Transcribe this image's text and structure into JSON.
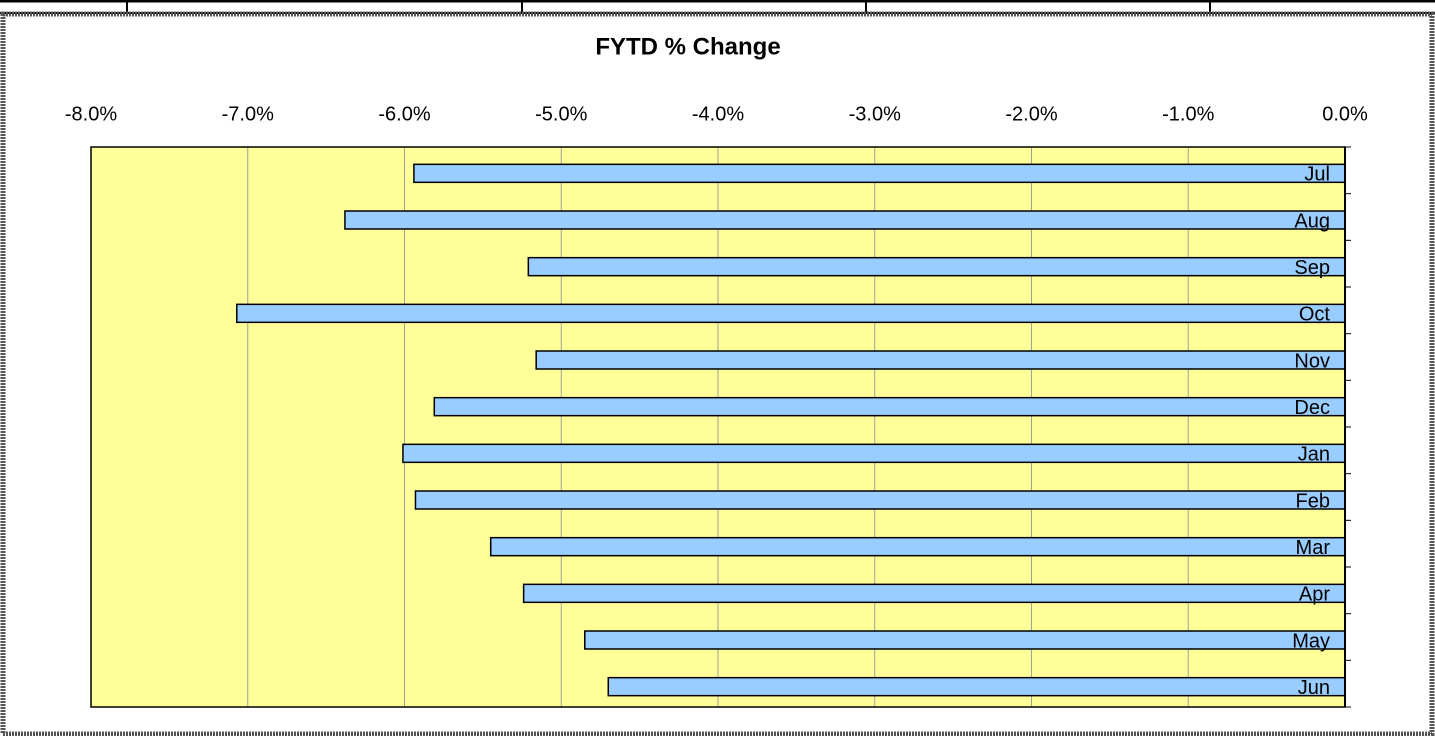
{
  "chart_data": {
    "type": "bar",
    "orientation": "horizontal",
    "title": "FYTD % Change",
    "categories": [
      "Jul",
      "Aug",
      "Sep",
      "Oct",
      "Nov",
      "Dec",
      "Jan",
      "Feb",
      "Mar",
      "Apr",
      "May",
      "Jun"
    ],
    "values": [
      -5.94,
      -6.38,
      -5.21,
      -7.07,
      -5.16,
      -5.81,
      -6.01,
      -5.93,
      -5.45,
      -5.24,
      -4.85,
      -4.7
    ],
    "color": "#99ccff",
    "xlim": [
      -8,
      0
    ],
    "xticks": [
      {
        "value": -8,
        "label": "-8.0%"
      },
      {
        "value": -7,
        "label": "-7.0%"
      },
      {
        "value": -6,
        "label": "-6.0%"
      },
      {
        "value": -5,
        "label": "-5.0%"
      },
      {
        "value": -4,
        "label": "-4.0%"
      },
      {
        "value": -3,
        "label": "-3.0%"
      },
      {
        "value": -2,
        "label": "-2.0%"
      },
      {
        "value": -1,
        "label": "-1.0%"
      },
      {
        "value": 0,
        "label": "0.0%"
      }
    ],
    "grid": true,
    "plot_background": "#ffff99"
  }
}
